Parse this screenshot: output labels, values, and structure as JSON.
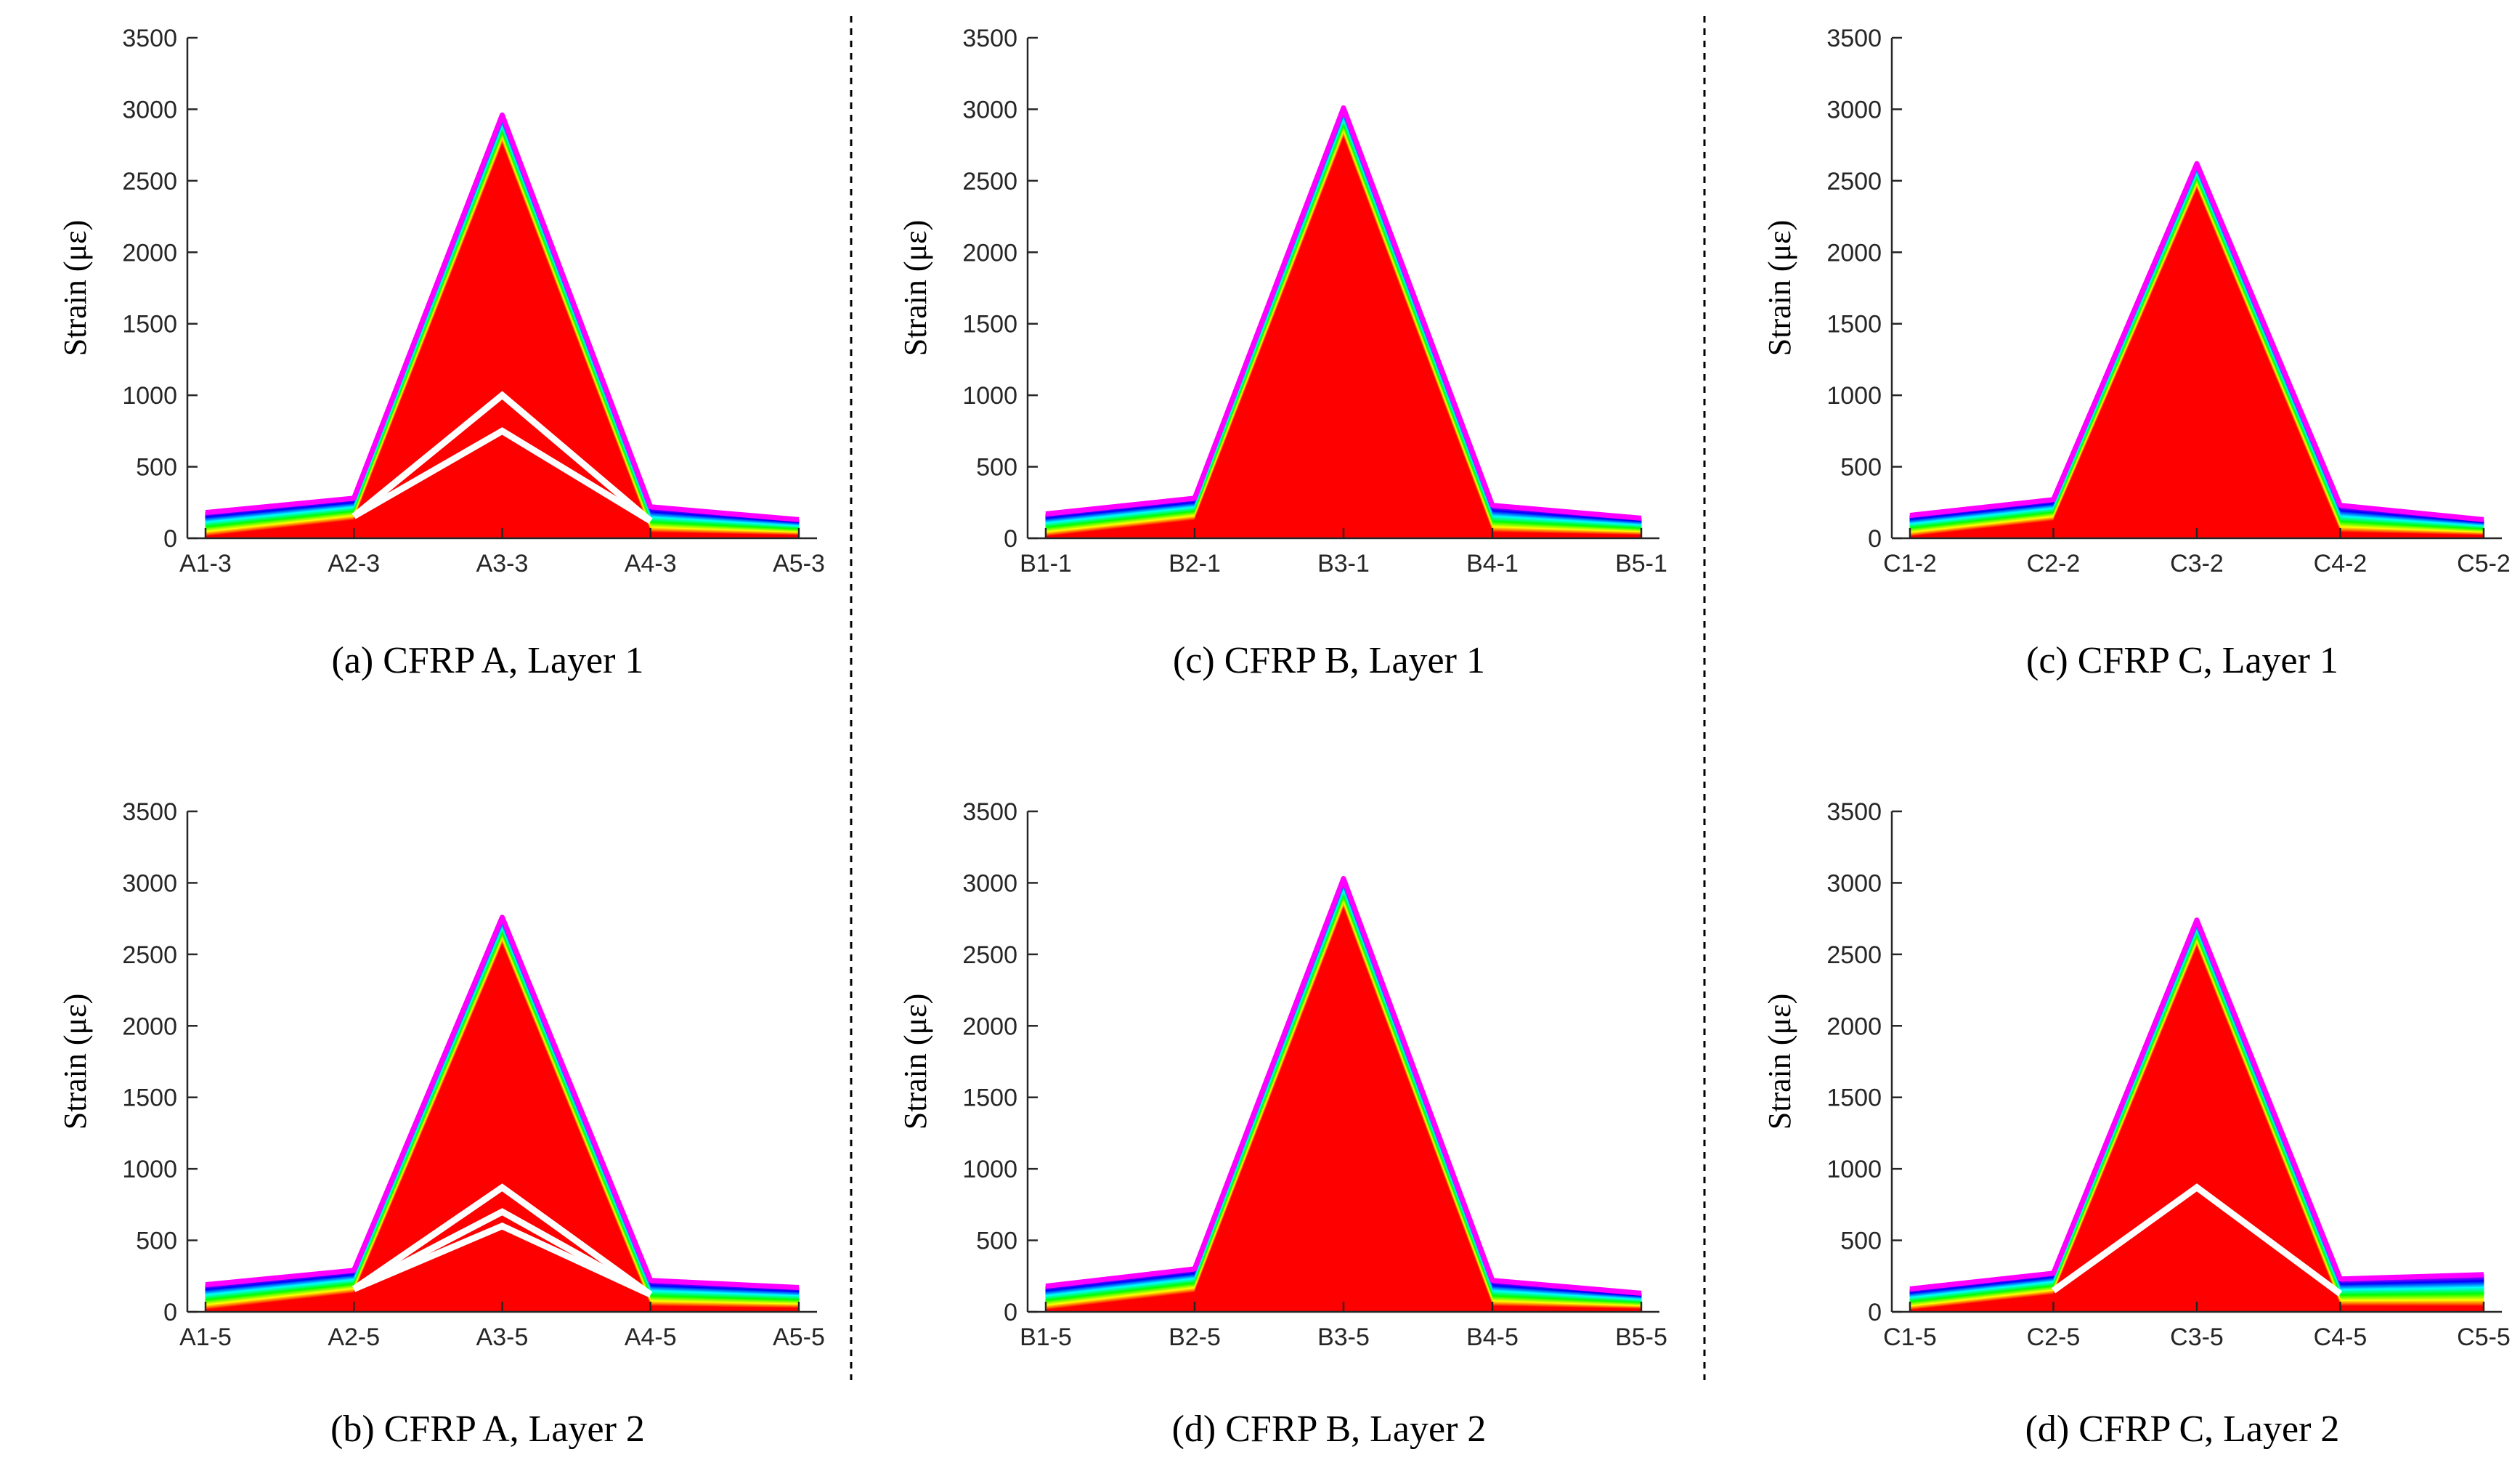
{
  "chart_data": [
    {
      "type": "line",
      "title": "(a) CFRP A, Layer 1",
      "xlabel": "",
      "ylabel": "Strain (με)",
      "ylim": [
        0,
        3500
      ],
      "yticks": [
        0,
        500,
        1000,
        1500,
        2000,
        2500,
        3000,
        3500
      ],
      "categories": [
        "A1-3",
        "A2-3",
        "A3-3",
        "A4-3",
        "A5-3"
      ],
      "envelope": [
        180,
        280,
        2960,
        220,
        130
      ],
      "gaps": [
        1000,
        750
      ],
      "series_note": "family of load-step curves, colored red (low) to violet (high)"
    },
    {
      "type": "line",
      "title": "(c) CFRP B, Layer 1",
      "xlabel": "",
      "ylabel": "Strain (με)",
      "ylim": [
        0,
        3500
      ],
      "yticks": [
        0,
        500,
        1000,
        1500,
        2000,
        2500,
        3000,
        3500
      ],
      "categories": [
        "B1-1",
        "B2-1",
        "B3-1",
        "B4-1",
        "B5-1"
      ],
      "envelope": [
        170,
        280,
        3010,
        230,
        140
      ],
      "gaps": [],
      "series_note": "family of load-step curves, colored red (low) to violet (high)"
    },
    {
      "type": "line",
      "title": "(c) CFRP C, Layer 1",
      "xlabel": "",
      "ylabel": "Strain (με)",
      "ylim": [
        0,
        3500
      ],
      "yticks": [
        0,
        500,
        1000,
        1500,
        2000,
        2500,
        3000,
        3500
      ],
      "categories": [
        "C1-2",
        "C2-2",
        "C3-2",
        "C4-2",
        "C5-2"
      ],
      "envelope": [
        160,
        270,
        2620,
        230,
        130
      ],
      "gaps": [],
      "series_note": "family of load-step curves, colored red (low) to violet (high)"
    },
    {
      "type": "line",
      "title": "(b) CFRP A, Layer 2",
      "xlabel": "",
      "ylabel": "Strain (με)",
      "ylim": [
        0,
        3500
      ],
      "yticks": [
        0,
        500,
        1000,
        1500,
        2000,
        2500,
        3000,
        3500
      ],
      "categories": [
        "A1-5",
        "A2-5",
        "A3-5",
        "A4-5",
        "A5-5"
      ],
      "envelope": [
        190,
        290,
        2760,
        220,
        170
      ],
      "gaps": [
        870,
        700,
        600
      ],
      "series_note": "family of load-step curves, colored red (low) to violet (high)"
    },
    {
      "type": "line",
      "title": "(d) CFRP B, Layer 2",
      "xlabel": "",
      "ylabel": "Strain (με)",
      "ylim": [
        0,
        3500
      ],
      "yticks": [
        0,
        500,
        1000,
        1500,
        2000,
        2500,
        3000,
        3500
      ],
      "categories": [
        "B1-5",
        "B2-5",
        "B3-5",
        "B4-5",
        "B5-5"
      ],
      "envelope": [
        180,
        300,
        3030,
        220,
        130
      ],
      "gaps": [],
      "series_note": "family of load-step curves, colored red (low) to violet (high)"
    },
    {
      "type": "line",
      "title": "(d) CFRP C, Layer 2",
      "xlabel": "",
      "ylabel": "Strain (με)",
      "ylim": [
        0,
        3500
      ],
      "yticks": [
        0,
        500,
        1000,
        1500,
        2000,
        2500,
        3000,
        3500
      ],
      "categories": [
        "C1-5",
        "C2-5",
        "C3-5",
        "C4-5",
        "C5-5"
      ],
      "envelope": [
        160,
        270,
        2740,
        230,
        260
      ],
      "gaps": [
        870
      ],
      "series_note": "family of load-step curves, colored red (low) to violet (high)"
    }
  ]
}
